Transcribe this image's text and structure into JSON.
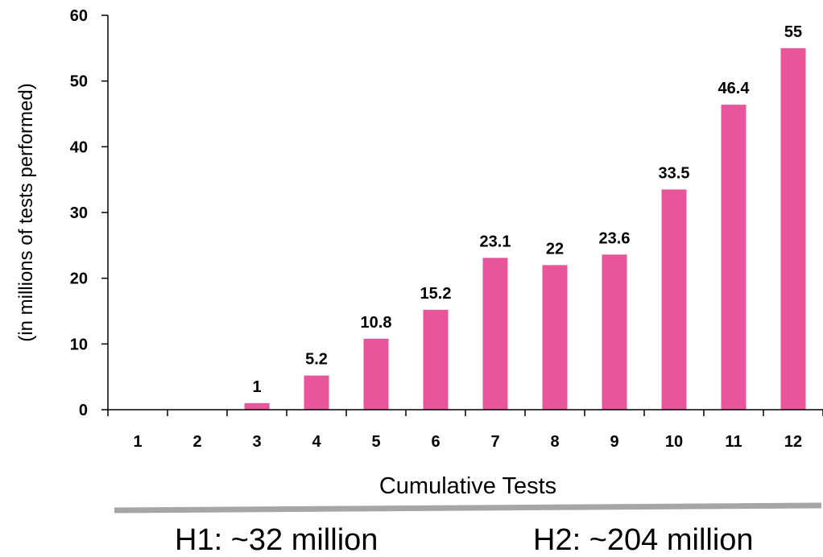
{
  "chart_data": {
    "type": "bar",
    "categories": [
      "1",
      "2",
      "3",
      "4",
      "5",
      "6",
      "7",
      "8",
      "9",
      "10",
      "11",
      "12"
    ],
    "values": [
      0,
      0,
      1,
      5.2,
      10.8,
      15.2,
      23.1,
      22,
      23.6,
      33.5,
      46.4,
      55
    ],
    "data_labels": [
      "",
      "",
      "1",
      "5.2",
      "10.8",
      "15.2",
      "23.1",
      "22",
      "23.6",
      "33.5",
      "46.4",
      "55"
    ],
    "ylim": [
      0,
      60
    ],
    "yticks": [
      "0",
      "10",
      "20",
      "30",
      "40",
      "50",
      "60"
    ],
    "xlabel": "Cumulative Tests",
    "ylabel": "(in millions of tests performed)",
    "grid": false,
    "legend": "none",
    "bar_color": "#e8559b"
  },
  "footer": {
    "h1_label": "H1: ~32 million",
    "h2_label": "H2: ~204 million",
    "divider_color": "#a6a6a6"
  }
}
